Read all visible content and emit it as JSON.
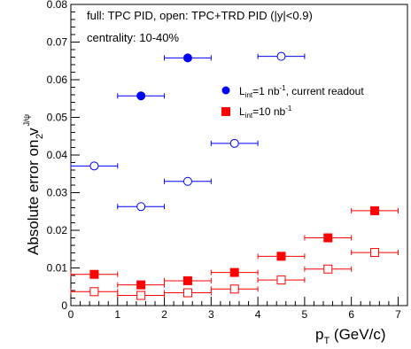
{
  "chart_data": {
    "type": "scatter",
    "annotations": [
      "full: TPC PID, open: TPC+TRD PID (|y|<0.9)",
      "centrality: 10-40%"
    ],
    "xlabel": {
      "main": "p",
      "sub": "T",
      "rest": " (GeV/c)"
    },
    "ylabel": {
      "main": "Absolute error on v",
      "sub": "2",
      "sup": "J/ψ"
    },
    "xlim": [
      0,
      7.2
    ],
    "ylim": [
      0,
      0.08
    ],
    "xticks": [
      "0",
      "1",
      "2",
      "3",
      "4",
      "5",
      "6",
      "7"
    ],
    "yticks": [
      "0",
      "0.01",
      "0.02",
      "0.03",
      "0.04",
      "0.05",
      "0.06",
      "0.07",
      "0.08"
    ],
    "grid": false,
    "legend_position": "top-right (inside plot)",
    "series": [
      {
        "name": "current readout TPC PID",
        "legend": {
          "pre": "L",
          "sub": "int",
          "mid": "=1 nb",
          "sup": "-1",
          "post": ", current readout"
        },
        "color": "#0000ff",
        "marker": "circle",
        "filled": true,
        "points": [
          {
            "x": 1.5,
            "y": 0.0557,
            "xerr": 0.5
          },
          {
            "x": 2.5,
            "y": 0.0658,
            "xerr": 0.5
          }
        ]
      },
      {
        "name": "current readout TPC+TRD PID",
        "color": "#0000ff",
        "marker": "circle",
        "filled": false,
        "points": [
          {
            "x": 0.5,
            "y": 0.0371,
            "xerr": 0.5
          },
          {
            "x": 1.5,
            "y": 0.0263,
            "xerr": 0.5
          },
          {
            "x": 2.5,
            "y": 0.033,
            "xerr": 0.5
          },
          {
            "x": 3.5,
            "y": 0.0431,
            "xerr": 0.5
          },
          {
            "x": 4.5,
            "y": 0.0662,
            "xerr": 0.5
          }
        ]
      },
      {
        "name": "10 nb-1 TPC PID",
        "legend": {
          "pre": "L",
          "sub": "int",
          "mid": "=10 nb",
          "sup": "-1",
          "post": ""
        },
        "color": "#ff0000",
        "marker": "square",
        "filled": true,
        "points": [
          {
            "x": 0.5,
            "y": 0.0083,
            "xerr": 0.5
          },
          {
            "x": 1.5,
            "y": 0.0055,
            "xerr": 0.5
          },
          {
            "x": 2.5,
            "y": 0.0066,
            "xerr": 0.5
          },
          {
            "x": 3.5,
            "y": 0.0088,
            "xerr": 0.5
          },
          {
            "x": 4.5,
            "y": 0.0131,
            "xerr": 0.5
          },
          {
            "x": 5.5,
            "y": 0.018,
            "xerr": 0.5
          },
          {
            "x": 6.5,
            "y": 0.0252,
            "xerr": 0.5
          }
        ]
      },
      {
        "name": "10 nb-1 TPC+TRD PID",
        "color": "#ff0000",
        "marker": "square",
        "filled": false,
        "points": [
          {
            "x": 0.5,
            "y": 0.0037,
            "xerr": 0.5
          },
          {
            "x": 1.5,
            "y": 0.0027,
            "xerr": 0.5
          },
          {
            "x": 2.5,
            "y": 0.0034,
            "xerr": 0.5
          },
          {
            "x": 3.5,
            "y": 0.0044,
            "xerr": 0.5
          },
          {
            "x": 4.5,
            "y": 0.0068,
            "xerr": 0.5
          },
          {
            "x": 5.5,
            "y": 0.0097,
            "xerr": 0.5
          },
          {
            "x": 6.5,
            "y": 0.0141,
            "xerr": 0.5
          }
        ]
      }
    ]
  }
}
